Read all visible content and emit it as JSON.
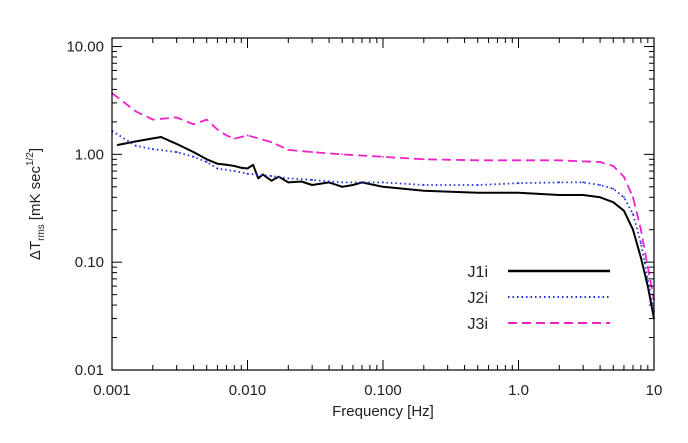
{
  "chart_data": {
    "type": "line",
    "title": "",
    "xlabel": "Frequency [Hz]",
    "ylabel": {
      "prefix": "ΔT",
      "subscript": "rms",
      "unit": "[mK sec",
      "exponent": "1/2",
      "close": "]"
    },
    "x_scale": "log",
    "y_scale": "log",
    "xlim": [
      0.001,
      10
    ],
    "ylim": [
      0.01,
      12
    ],
    "x_ticks": [
      {
        "value": 0.001,
        "label": "0.001"
      },
      {
        "value": 0.01,
        "label": "0.010"
      },
      {
        "value": 0.1,
        "label": "0.100"
      },
      {
        "value": 1,
        "label": "1.0"
      },
      {
        "value": 10,
        "label": "10"
      }
    ],
    "y_ticks": [
      {
        "value": 0.01,
        "label": "0.01"
      },
      {
        "value": 0.1,
        "label": "0.10"
      },
      {
        "value": 1,
        "label": "1.00"
      },
      {
        "value": 10,
        "label": "10.00"
      }
    ],
    "grid": false,
    "legend_position": "bottom-right",
    "series": [
      {
        "name": "J1i",
        "color": "#000000",
        "style": "solid",
        "x": [
          0.0011,
          0.0015,
          0.0023,
          0.003,
          0.004,
          0.005,
          0.006,
          0.007,
          0.008,
          0.009,
          0.01,
          0.011,
          0.012,
          0.013,
          0.015,
          0.017,
          0.02,
          0.025,
          0.03,
          0.04,
          0.05,
          0.06,
          0.07,
          0.1,
          0.2,
          0.5,
          1,
          2,
          3,
          4,
          5,
          6,
          7,
          8,
          9,
          10
        ],
        "y": [
          1.22,
          1.32,
          1.45,
          1.25,
          1.05,
          0.9,
          0.82,
          0.8,
          0.78,
          0.75,
          0.74,
          0.8,
          0.6,
          0.65,
          0.57,
          0.62,
          0.55,
          0.56,
          0.52,
          0.55,
          0.5,
          0.52,
          0.55,
          0.5,
          0.46,
          0.44,
          0.44,
          0.42,
          0.42,
          0.4,
          0.36,
          0.3,
          0.2,
          0.11,
          0.06,
          0.03
        ]
      },
      {
        "name": "J2i",
        "color": "#1f2fe0",
        "style": "dotted",
        "x": [
          0.001,
          0.0015,
          0.002,
          0.003,
          0.004,
          0.005,
          0.006,
          0.008,
          0.01,
          0.015,
          0.02,
          0.03,
          0.05,
          0.1,
          0.2,
          0.5,
          1,
          2,
          3,
          4,
          5,
          6,
          7,
          8,
          9,
          10
        ],
        "y": [
          1.65,
          1.2,
          1.12,
          1.05,
          0.95,
          0.85,
          0.74,
          0.7,
          0.66,
          0.63,
          0.6,
          0.58,
          0.55,
          0.55,
          0.52,
          0.52,
          0.54,
          0.55,
          0.55,
          0.52,
          0.48,
          0.4,
          0.28,
          0.15,
          0.07,
          0.035
        ]
      },
      {
        "name": "J3i",
        "color": "#ee22cc",
        "style": "dashed",
        "x": [
          0.001,
          0.0015,
          0.002,
          0.003,
          0.004,
          0.005,
          0.006,
          0.007,
          0.008,
          0.01,
          0.015,
          0.02,
          0.03,
          0.05,
          0.1,
          0.2,
          0.5,
          1,
          2,
          3,
          4,
          5,
          6,
          7,
          8,
          9,
          10
        ],
        "y": [
          3.7,
          2.5,
          2.1,
          2.2,
          1.9,
          2.1,
          1.7,
          1.5,
          1.4,
          1.5,
          1.3,
          1.1,
          1.05,
          1.0,
          0.95,
          0.9,
          0.88,
          0.88,
          0.88,
          0.86,
          0.85,
          0.78,
          0.62,
          0.4,
          0.2,
          0.09,
          0.045
        ]
      }
    ]
  }
}
